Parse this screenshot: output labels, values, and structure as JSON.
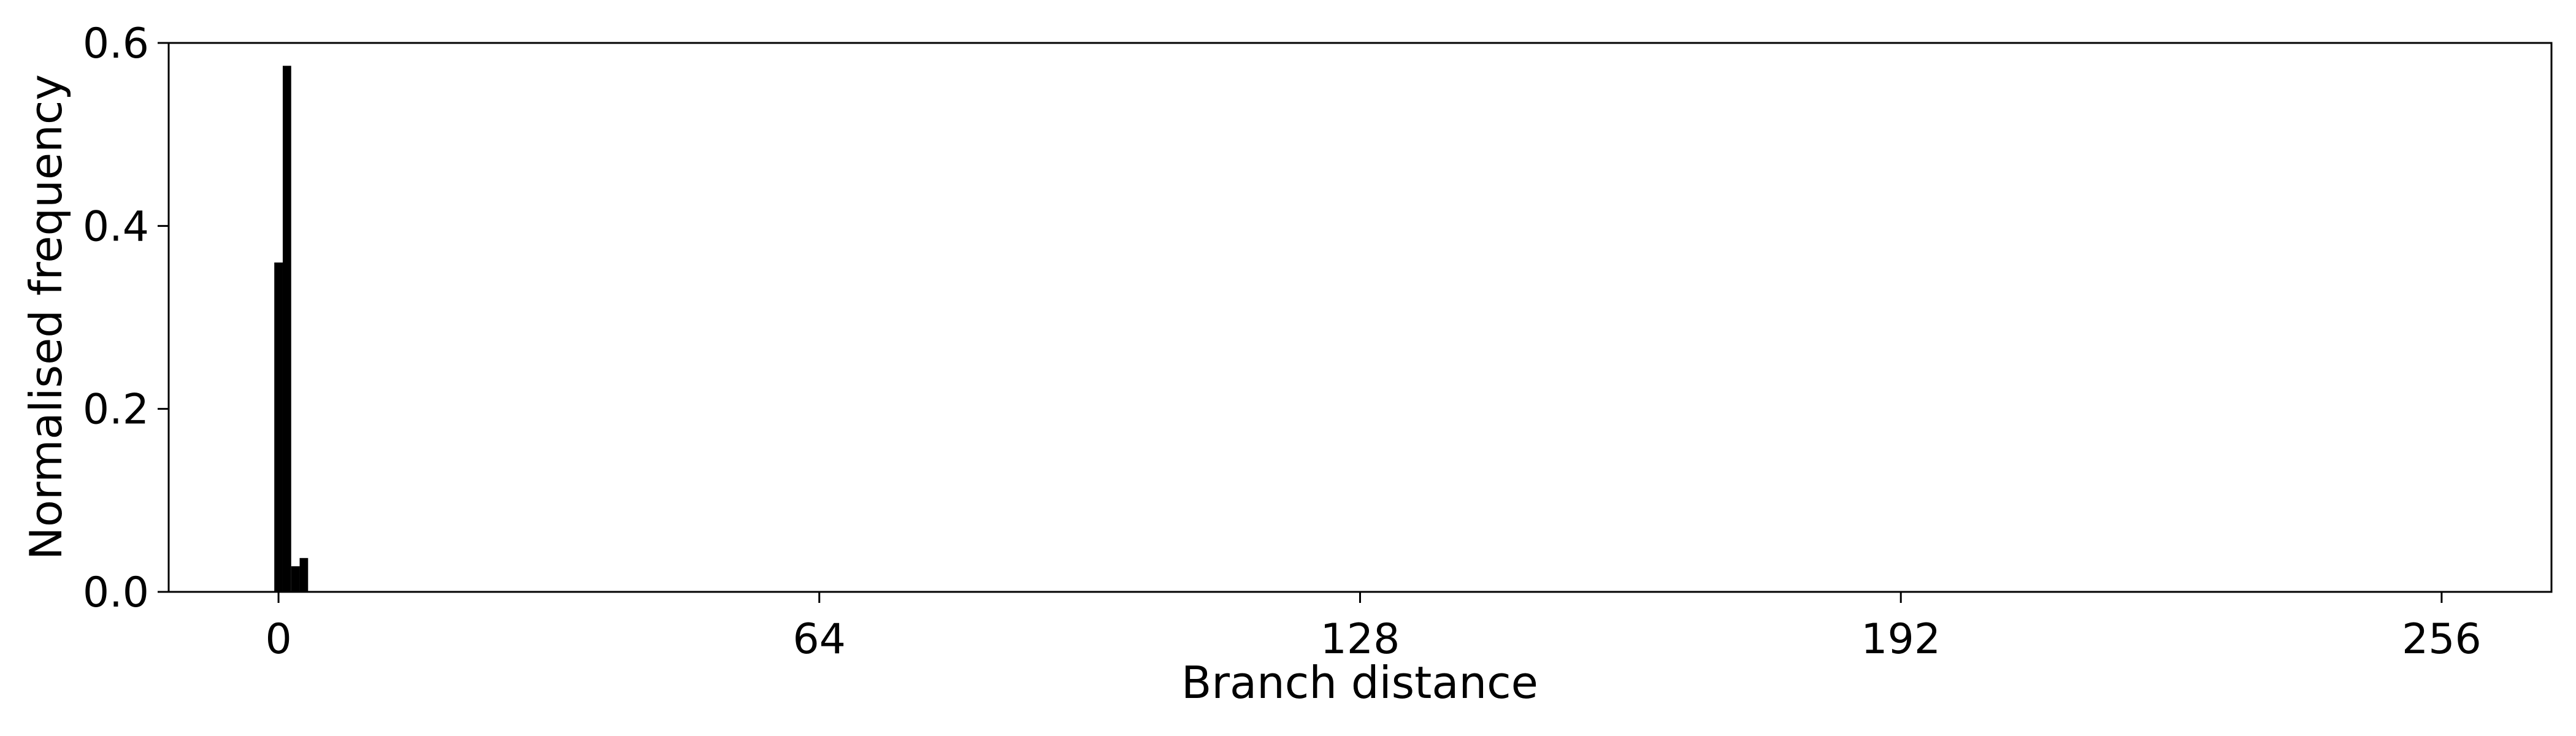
{
  "chart_data": {
    "type": "bar",
    "title": "",
    "xlabel": "Branch distance",
    "ylabel": "Normalised frequency",
    "xlim": [
      -13,
      269
    ],
    "ylim": [
      0,
      0.6
    ],
    "x_ticks": [
      0,
      64,
      128,
      192,
      256
    ],
    "y_ticks": [
      0.0,
      0.2,
      0.4,
      0.6
    ],
    "y_tick_labels": [
      "0.0",
      "0.2",
      "0.4",
      "0.6"
    ],
    "bin_width": 1,
    "bins": [
      {
        "x": 0,
        "value": 0.36
      },
      {
        "x": 1,
        "value": 0.575
      },
      {
        "x": 2,
        "value": 0.028
      },
      {
        "x": 3,
        "value": 0.037
      }
    ],
    "baseline_range": [
      0,
      256
    ],
    "grid": false,
    "colors": {
      "bars": "#000000",
      "axes": "#000000",
      "background": "#ffffff"
    }
  }
}
